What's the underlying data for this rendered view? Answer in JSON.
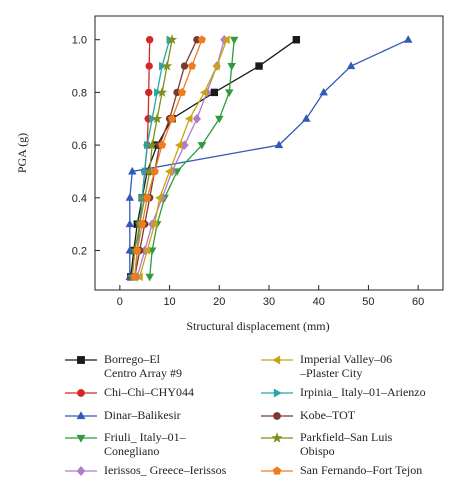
{
  "chart_data": {
    "type": "line",
    "title": "",
    "xlabel": "Structural displacement (mm)",
    "ylabel": "PGA (g)",
    "xlim": [
      -5,
      65
    ],
    "ylim": [
      0.05,
      1.09
    ],
    "xticks": [
      0,
      10,
      20,
      30,
      40,
      50,
      60
    ],
    "yticks": [
      0.2,
      0.4,
      0.6,
      0.8,
      1.0
    ],
    "xtick_labels": [
      "0",
      "10",
      "20",
      "30",
      "40",
      "50",
      "60"
    ],
    "ytick_labels": [
      "0.2",
      "0.4",
      "0.6",
      "0.8",
      "1.0"
    ],
    "grid": false,
    "legend_placement": "below",
    "y_levels": [
      0.1,
      0.2,
      0.3,
      0.4,
      0.5,
      0.6,
      0.7,
      0.8,
      0.9,
      1.0
    ],
    "series": [
      {
        "name": "Borrego–El\nCentro Array #9",
        "color": "#1a1a1a",
        "marker": "square",
        "x": [
          2.2,
          2.8,
          3.5,
          4.5,
          5.5,
          7.5,
          10.5,
          19,
          28,
          35.5
        ]
      },
      {
        "name": "Chi–Chi–CHY044",
        "color": "#d62728",
        "marker": "circle",
        "x": [
          3.0,
          3.5,
          4.0,
          4.5,
          5.0,
          5.5,
          5.7,
          5.8,
          5.9,
          6.0
        ]
      },
      {
        "name": "Dinar–Balikesir",
        "color": "#2f5bb7",
        "marker": "triangle-up",
        "x": [
          2.0,
          2.0,
          2.0,
          2.0,
          2.5,
          32,
          37.5,
          41,
          46.5,
          58
        ]
      },
      {
        "name": "Friuli_ Italy–01–\nConegliano",
        "color": "#2e9b3e",
        "marker": "triangle-down",
        "x": [
          6.0,
          6.5,
          7.5,
          9.0,
          11.5,
          16.5,
          20,
          22,
          22.5,
          23
        ]
      },
      {
        "name": "Ierissos_ Greece–Ierissos",
        "color": "#b07cc6",
        "marker": "diamond",
        "x": [
          3.5,
          5.0,
          6.5,
          8.5,
          10.5,
          13,
          15.5,
          17.5,
          19.5,
          21
        ]
      },
      {
        "name": "Imperial Valley–06\n–Plaster City",
        "color": "#c8a415",
        "marker": "triangle-left",
        "x": [
          4.0,
          5.5,
          7.0,
          8.0,
          10,
          12,
          14,
          17,
          19.5,
          21.5
        ]
      },
      {
        "name": "Irpinia_ Italy–01–Arienzo",
        "color": "#26a6a6",
        "marker": "triangle-right",
        "x": [
          3.0,
          3.5,
          4.0,
          4.5,
          5.0,
          5.5,
          6.5,
          7.5,
          8.5,
          10
        ]
      },
      {
        "name": "Kobe–TOT",
        "color": "#7a3b2e",
        "marker": "circle",
        "x": [
          3.0,
          4.0,
          5.0,
          6.0,
          7.0,
          8.0,
          10,
          11.5,
          13,
          15.5
        ]
      },
      {
        "name": "Parkfield–San Luis\nObispo",
        "color": "#7f8f1a",
        "marker": "star",
        "x": [
          2.5,
          3.0,
          4.0,
          5.0,
          6.0,
          6.5,
          7.5,
          8.5,
          9.5,
          10.5
        ]
      },
      {
        "name": "San Fernando–Fort Tejon",
        "color": "#f07c1e",
        "marker": "pentagon",
        "x": [
          3.0,
          3.5,
          4.5,
          5.5,
          7.0,
          8.5,
          10.5,
          12.5,
          14.5,
          16.5
        ]
      }
    ]
  }
}
